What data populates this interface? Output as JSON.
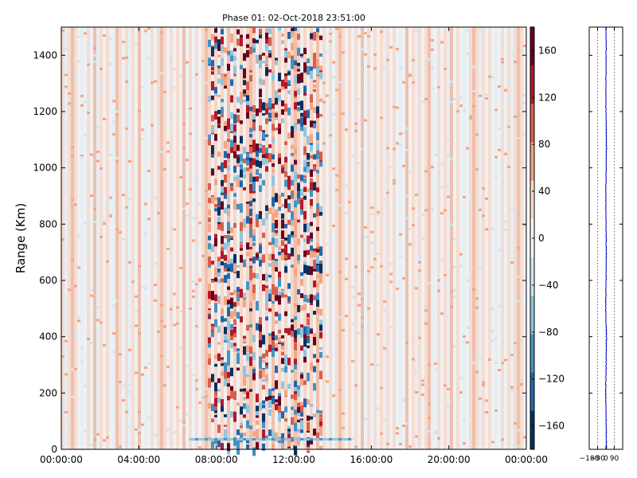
{
  "chart_data": [
    {
      "type": "heatmap",
      "title": "Phase 01: 02-Oct-2018 23:51:00",
      "xlabel": "",
      "ylabel": "Range (Km)",
      "x_ticks": [
        "00:00:00",
        "04:00:00",
        "08:00:00",
        "12:00:00",
        "16:00:00",
        "20:00:00",
        "00:00:00"
      ],
      "x_range_hours": [
        0,
        24
      ],
      "y_ticks": [
        0,
        200,
        400,
        600,
        800,
        1000,
        1200,
        1400
      ],
      "ylim": [
        0,
        1500
      ],
      "grid": false,
      "colormap": "RdBu_r",
      "colorbar": {
        "ticks": [
          160,
          120,
          80,
          40,
          0,
          -40,
          -80,
          -120,
          -160
        ],
        "labels": [
          "160",
          "120",
          "80",
          "40",
          "0",
          "−40",
          "−80",
          "−120",
          "−160"
        ],
        "range": [
          -180,
          180
        ],
        "colors_top_to_bottom": [
          "#67001f",
          "#b2182b",
          "#d6604d",
          "#f4a582",
          "#fddbc7",
          "#f7f7f7",
          "#d1e5f0",
          "#92c5de",
          "#4393c3",
          "#2166ac",
          "#053061"
        ]
      },
      "description_bands": {
        "quiet_low_hours": [
          0,
          6
        ],
        "active_hours": [
          7.5,
          13.5
        ],
        "quiet_high_hours": [
          14,
          24
        ]
      }
    },
    {
      "type": "line",
      "xlim": [
        -180,
        180
      ],
      "x_ticks": [
        -180,
        -90,
        0,
        90
      ],
      "x_tick_labels": [
        "−180",
        "−90",
        "0",
        "90"
      ],
      "ylim": [
        0,
        1500
      ],
      "grid": true,
      "series": [
        {
          "color": "#0000cc",
          "ranges": [
            0,
            100,
            200,
            300,
            400,
            500,
            600,
            700,
            800,
            900,
            1000,
            1100,
            1200,
            1300,
            1400,
            1500
          ],
          "phase": [
            5,
            3,
            -4,
            2,
            6,
            -3,
            2,
            4,
            1,
            -2,
            3,
            5,
            0,
            -1,
            2,
            1
          ]
        }
      ]
    }
  ],
  "colors": {
    "background": "#ffffff",
    "axis": "#000000"
  }
}
